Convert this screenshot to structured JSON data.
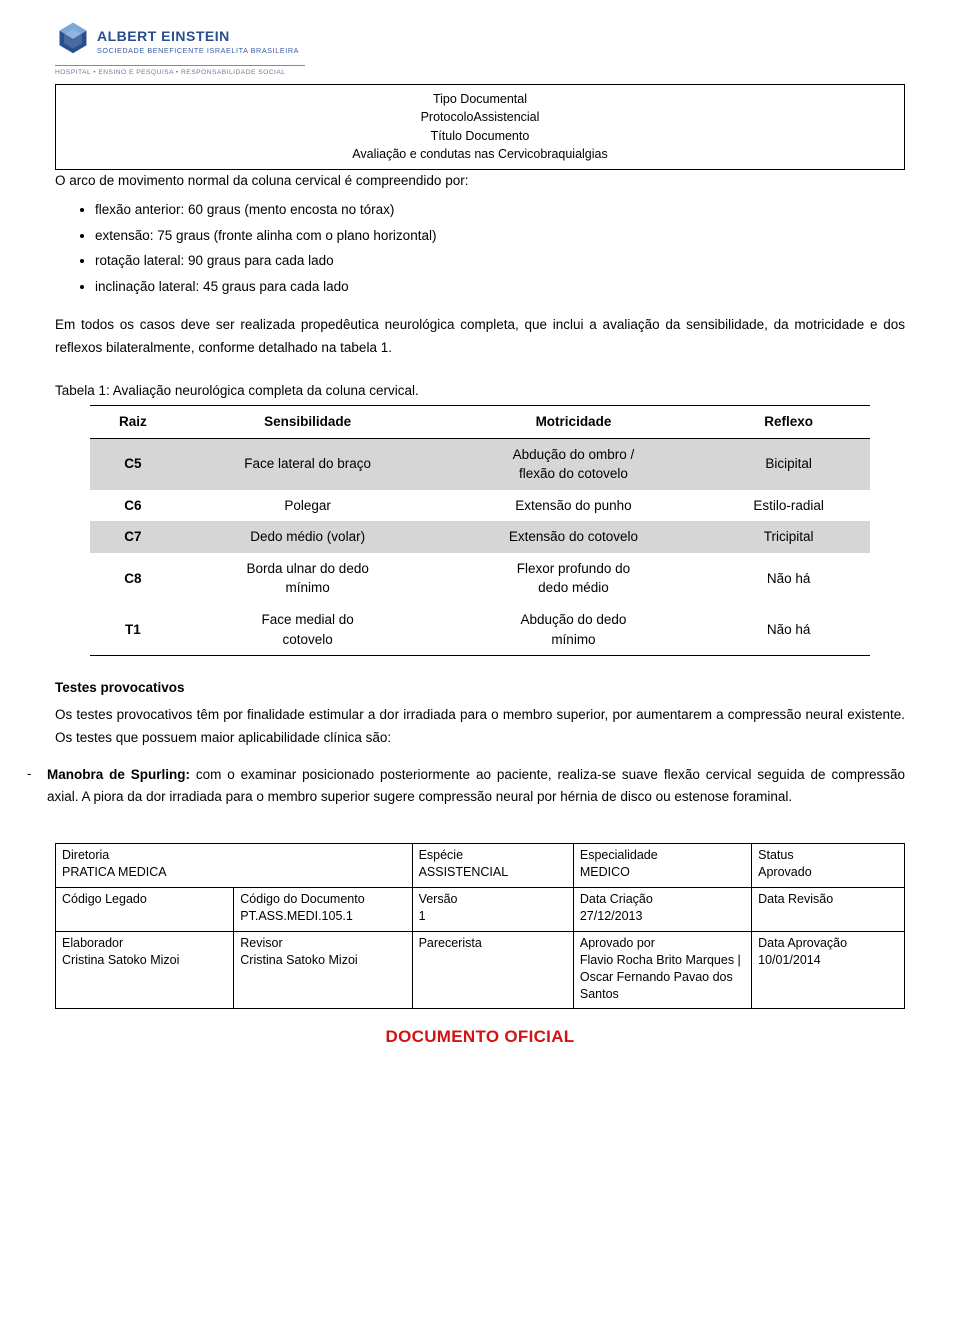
{
  "logo": {
    "main": "ALBERT EINSTEIN",
    "sub": "SOCIEDADE BENEFICENTE ISRAELITA BRASILEIRA",
    "tag": "HOSPITAL • ENSINO E PESQUISA • RESPONSABILIDADE SOCIAL",
    "icon_colors": {
      "outer": "#2a4f8f",
      "inner": "#7aa8d8"
    }
  },
  "doc_header": {
    "tipo_label": "Tipo Documental",
    "tipo_value": "ProtocoloAssistencial",
    "titulo_label": "Título Documento",
    "titulo_value": "Avaliação e condutas nas Cervicobraquialgias"
  },
  "intro_line": "O arco de movimento normal da coluna cervical é compreendido por:",
  "bullets": [
    "flexão anterior: 60 graus (mento encosta no tórax)",
    "extensão: 75 graus (fronte alinha com o plano horizontal)",
    "rotação lateral: 90 graus para cada lado",
    "inclinação lateral: 45 graus para cada lado"
  ],
  "para1": "Em todos os casos deve ser realizada propedêutica neurológica completa, que inclui a avaliação da sensibilidade, da motricidade e dos reflexos bilateralmente, conforme detalhado na tabela 1.",
  "table_caption": "Tabela 1: Avaliação neurológica completa da coluna cervical.",
  "neuro_table": {
    "headers": [
      "Raiz",
      "Sensibilidade",
      "Motricidade",
      "Reflexo"
    ],
    "rows": [
      {
        "shade": true,
        "raiz": "C5",
        "sens": [
          "Face lateral do braço"
        ],
        "motr": [
          "Abdução do ombro /",
          "flexão do cotovelo"
        ],
        "refl": [
          "Bicipital"
        ]
      },
      {
        "shade": false,
        "raiz": "C6",
        "sens": [
          "Polegar"
        ],
        "motr": [
          "Extensão do punho"
        ],
        "refl": [
          "Estilo-radial"
        ]
      },
      {
        "shade": true,
        "raiz": "C7",
        "sens": [
          "Dedo médio (volar)"
        ],
        "motr": [
          "Extensão do cotovelo"
        ],
        "refl": [
          "Tricipital"
        ]
      },
      {
        "shade": false,
        "raiz": "C8",
        "sens": [
          "Borda ulnar do dedo",
          "mínimo"
        ],
        "motr": [
          "Flexor profundo do",
          "dedo médio"
        ],
        "refl": [
          "Não há"
        ]
      },
      {
        "shade": false,
        "raiz": "T1",
        "sens": [
          "Face medial do",
          "cotovelo"
        ],
        "motr": [
          "Abdução do dedo",
          "mínimo"
        ],
        "refl": [
          "Não há"
        ]
      }
    ]
  },
  "tests_title": "Testes provocativos",
  "tests_para": "Os testes provocativos têm por finalidade estimular a dor irradiada para o membro superior, por aumentarem a compressão neural existente. Os testes que possuem maior aplicabilidade clínica são:",
  "spurling_title": "Manobra de Spurling:",
  "spurling_body": " com o examinar posicionado posteriormente ao paciente, realiza-se suave flexão cervical seguida de compressão axial. A piora da dor irradiada para o membro superior sugere compressão neural por hérnia de disco ou estenose foraminal.",
  "meta": {
    "row1": [
      {
        "label": "Diretoria",
        "value": "PRATICA MEDICA",
        "span": 2
      },
      {
        "label": "Espécie",
        "value": "ASSISTENCIAL",
        "span": 1
      },
      {
        "label": "Especialidade",
        "value": "MEDICO",
        "span": 1
      },
      {
        "label": "Status",
        "value": "Aprovado",
        "span": 1
      }
    ],
    "row2": [
      {
        "label": "Código Legado",
        "value": "",
        "span": 1
      },
      {
        "label": "Código do Documento",
        "value": "PT.ASS.MEDI.105.1",
        "span": 1
      },
      {
        "label": "Versão",
        "value": "1",
        "span": 1
      },
      {
        "label": "Data Criação",
        "value": "27/12/2013",
        "span": 1
      },
      {
        "label": "Data Revisão",
        "value": "",
        "span": 1
      }
    ],
    "row3": [
      {
        "label": "Elaborador",
        "value": "Cristina Satoko Mizoi",
        "span": 1
      },
      {
        "label": "Revisor",
        "value": "Cristina Satoko Mizoi",
        "span": 1
      },
      {
        "label": "Parecerista",
        "value": "",
        "span": 1
      },
      {
        "label": "Aprovado por",
        "value": "Flavio Rocha Brito Marques | Oscar Fernando Pavao dos Santos",
        "span": 1
      },
      {
        "label": "Data Aprovação",
        "value": "10/01/2014",
        "span": 1
      }
    ],
    "col_widths": [
      "21%",
      "21%",
      "19%",
      "21%",
      "18%"
    ]
  },
  "footer_stamp": "DOCUMENTO OFICIAL",
  "colors": {
    "text": "#000000",
    "shade": "#d6d6d6",
    "stamp": "#d11313",
    "logo_blue": "#2a4f8f"
  }
}
